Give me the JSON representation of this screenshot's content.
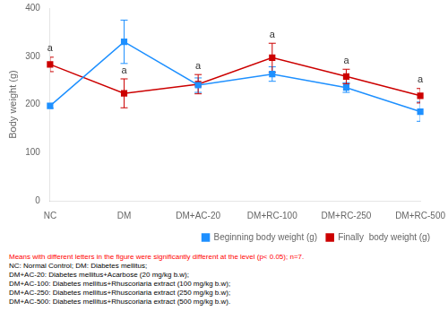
{
  "chart_data": {
    "type": "line",
    "categories": [
      "NC",
      "DM",
      "DM+AC-20",
      "DM+RC-100",
      "DM+RC-250",
      "DM+RC-500"
    ],
    "series": [
      {
        "name": "Beginning body weight (g)",
        "color": "#1e90ff",
        "marker": "square",
        "values": [
          197,
          330,
          240,
          263,
          235,
          185
        ],
        "errors": [
          5,
          45,
          15,
          15,
          10,
          20
        ]
      },
      {
        "name": "Finally  body weight (g)",
        "color": "#cc0000",
        "marker": "square",
        "values": [
          283,
          223,
          242,
          297,
          258,
          218
        ],
        "errors": [
          15,
          30,
          20,
          30,
          15,
          15
        ],
        "annotations": [
          "a",
          "a",
          "a",
          "a",
          "a",
          "a"
        ]
      }
    ],
    "ylabel": "Body weight (g)",
    "ylim": [
      0,
      400
    ],
    "yticks": [
      0,
      100,
      200,
      300,
      400
    ],
    "grid": false,
    "legend": "lower right",
    "footnotes": [
      {
        "text": "Means with different letters in the figure were significantly different at the level (p< 0.05); n=7.",
        "color": "red"
      },
      {
        "text": "NC: Normal Control; DM: Diabetes mellitus;",
        "color": "black"
      },
      {
        "text": "DM+AC-20: Diabetes mellitus+Acarbose (20 mg/kg b.w);",
        "color": "black"
      },
      {
        "text": "DM+AC-100: Diabetes mellitus+Rhuscoriaria extract (100 mg/kg b.w);",
        "color": "black"
      },
      {
        "text": "DM+AC-250: Diabetes mellitus+Rhuscoriaria extract (250 mg/kg b.w);",
        "color": "black"
      },
      {
        "text": "DM+AC-500: Diabetes mellitus+Rhuscoriaria extract (500 mg/kg b.w).",
        "color": "black"
      }
    ]
  }
}
